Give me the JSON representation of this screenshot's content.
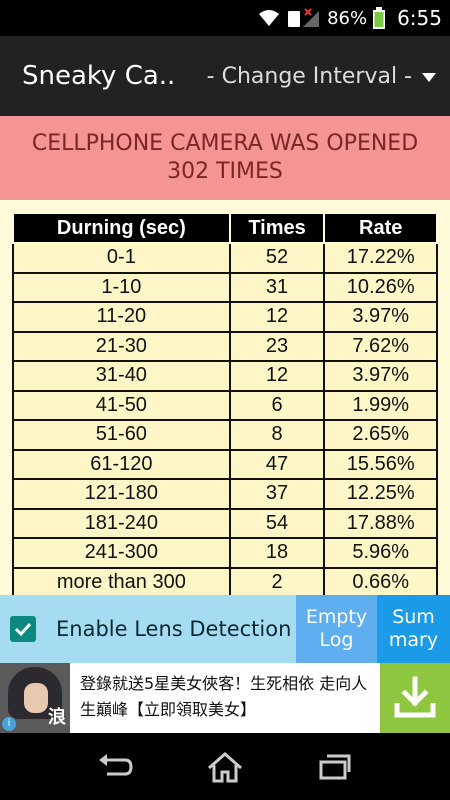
{
  "status_bar": {
    "battery_percent": "86%",
    "time": "6:55",
    "icons": [
      "wifi-icon",
      "sim-no-signal-icon",
      "battery-icon"
    ]
  },
  "action_bar": {
    "title": "Sneaky Ca...",
    "interval_label": "- Change Interval -"
  },
  "banner": {
    "line1": "CELLPHONE CAMERA WAS OPENED",
    "line2": "302 TIMES"
  },
  "table": {
    "headers": [
      "Durning (sec)",
      "Times",
      "Rate"
    ],
    "rows": [
      [
        "0-1",
        "52",
        "17.22%"
      ],
      [
        "1-10",
        "31",
        "10.26%"
      ],
      [
        "11-20",
        "12",
        "3.97%"
      ],
      [
        "21-30",
        "23",
        "7.62%"
      ],
      [
        "31-40",
        "12",
        "3.97%"
      ],
      [
        "41-50",
        "6",
        "1.99%"
      ],
      [
        "51-60",
        "8",
        "2.65%"
      ],
      [
        "61-120",
        "47",
        "15.56%"
      ],
      [
        "121-180",
        "37",
        "12.25%"
      ],
      [
        "181-240",
        "54",
        "17.88%"
      ],
      [
        "241-300",
        "18",
        "5.96%"
      ],
      [
        "more than 300",
        "2",
        "0.66%"
      ]
    ]
  },
  "controls": {
    "lens_label": "Enable Lens Detection",
    "lens_checked": true,
    "empty_log_line1": "Empty",
    "empty_log_line2": "Log",
    "summary_line1": "Sum",
    "summary_line2": "mary"
  },
  "ad": {
    "text": "登錄就送5星美女俠客！生死相依 走向人生巔峰【立即領取美女】",
    "thumb_glyph": "浪",
    "info_glyph": "i"
  },
  "colors": {
    "banner_bg": "#f49593",
    "table_bg": "#fffbd9",
    "lens_bg": "#a6dcf2",
    "empty_log_bg": "#5faef0",
    "summary_bg": "#1b9be7",
    "download_bg": "#8ec63f"
  }
}
